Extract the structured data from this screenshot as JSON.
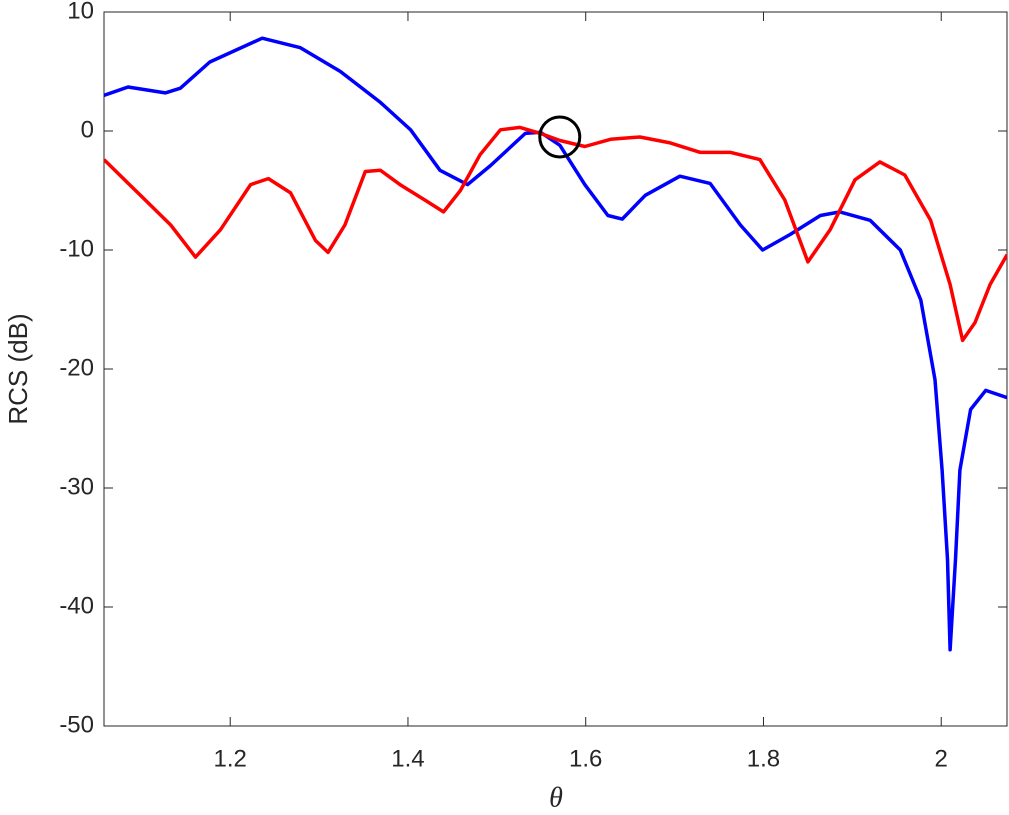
{
  "chart_data": {
    "type": "line",
    "x_label": "θ",
    "y_label": "RCS (dB)",
    "xlim": [
      1.058,
      2.074
    ],
    "ylim": [
      -50,
      10
    ],
    "xticks": [
      1.2,
      1.4,
      1.6,
      1.8,
      2
    ],
    "yticks": [
      -50,
      -40,
      -30,
      -20,
      -10,
      0,
      10
    ],
    "series": [
      {
        "color": "#0000ff",
        "x": [
          1.058,
          1.085,
          1.127,
          1.144,
          1.177,
          1.236,
          1.279,
          1.324,
          1.369,
          1.403,
          1.436,
          1.467,
          1.493,
          1.532,
          1.549,
          1.571,
          1.599,
          1.625,
          1.641,
          1.667,
          1.706,
          1.74,
          1.774,
          1.799,
          1.83,
          1.864,
          1.886,
          1.92,
          1.954,
          1.977,
          1.993,
          2.001,
          2.007,
          2.01,
          2.016,
          2.021,
          2.033,
          2.05,
          2.074
        ],
        "values": [
          3.0,
          3.7,
          3.2,
          3.6,
          5.8,
          7.8,
          7.0,
          5.0,
          2.4,
          0.1,
          -3.3,
          -4.5,
          -2.9,
          -0.2,
          -0.1,
          -1.2,
          -4.5,
          -7.1,
          -7.4,
          -5.4,
          -3.8,
          -4.4,
          -7.9,
          -10.0,
          -8.7,
          -7.1,
          -6.8,
          -7.5,
          -10.0,
          -14.2,
          -20.9,
          -28.5,
          -36.0,
          -43.6,
          -36.0,
          -28.5,
          -23.4,
          -21.8,
          -22.4
        ]
      },
      {
        "color": "#ff0000",
        "x": [
          1.058,
          1.099,
          1.133,
          1.161,
          1.189,
          1.223,
          1.243,
          1.268,
          1.296,
          1.31,
          1.329,
          1.352,
          1.369,
          1.391,
          1.419,
          1.44,
          1.459,
          1.481,
          1.504,
          1.526,
          1.549,
          1.571,
          1.599,
          1.628,
          1.661,
          1.695,
          1.729,
          1.763,
          1.796,
          1.824,
          1.85,
          1.875,
          1.903,
          1.931,
          1.959,
          1.988,
          2.01,
          2.024,
          2.038,
          2.055,
          2.074
        ],
        "values": [
          -2.4,
          -5.4,
          -7.9,
          -10.6,
          -8.3,
          -4.5,
          -4.0,
          -5.2,
          -9.2,
          -10.2,
          -7.9,
          -3.4,
          -3.3,
          -4.5,
          -5.8,
          -6.8,
          -5.0,
          -2.0,
          0.1,
          0.3,
          -0.2,
          -0.8,
          -1.3,
          -0.7,
          -0.5,
          -1.0,
          -1.8,
          -1.8,
          -2.4,
          -5.8,
          -11.0,
          -8.3,
          -4.1,
          -2.6,
          -3.7,
          -7.5,
          -12.9,
          -17.6,
          -16.1,
          -12.9,
          -10.4
        ]
      }
    ],
    "markers": [
      {
        "x": 1.5708,
        "y": -0.5,
        "color": "#000000"
      }
    ]
  }
}
